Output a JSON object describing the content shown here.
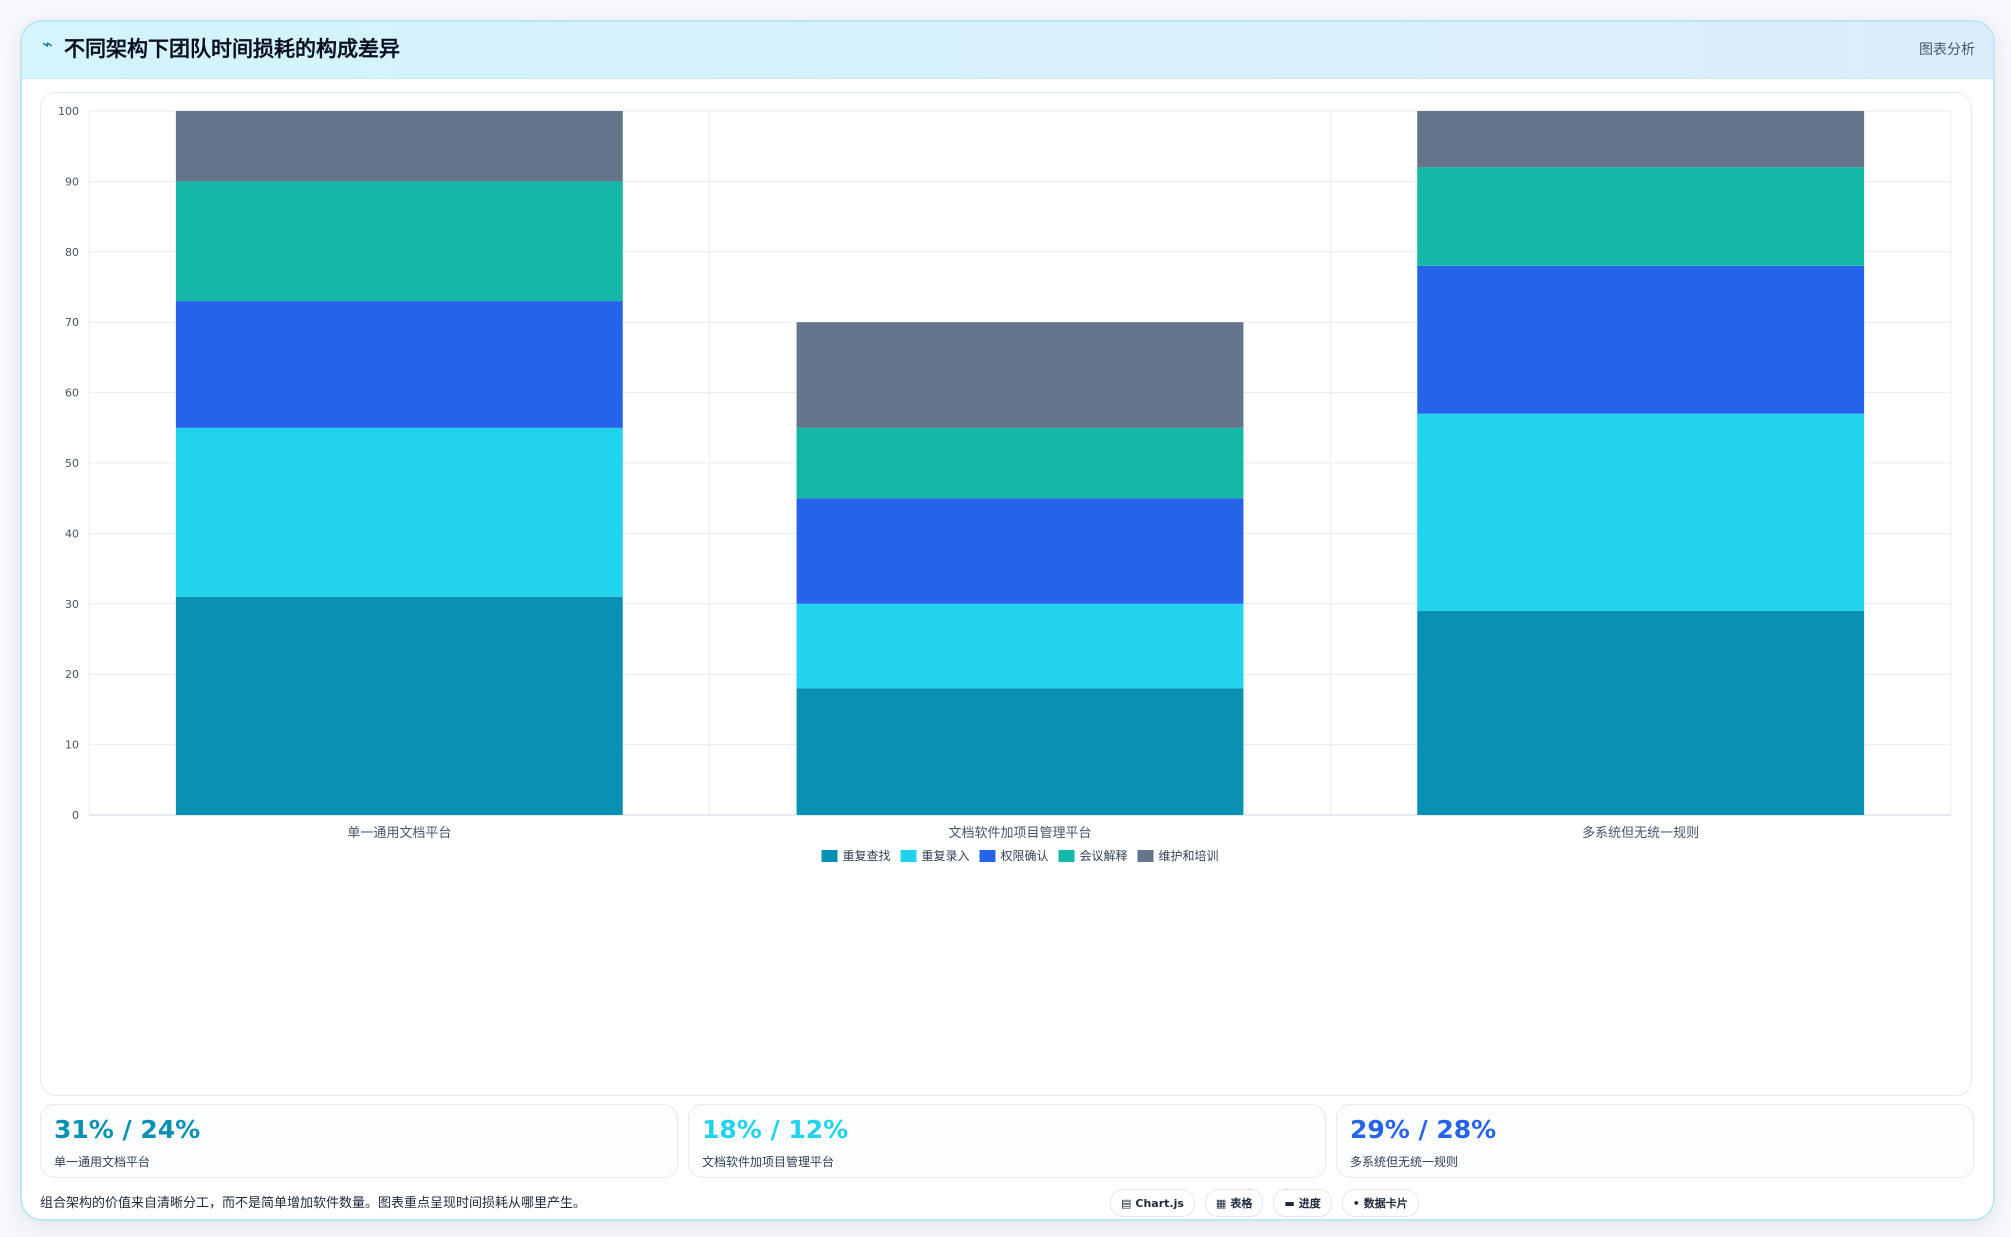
{
  "header": {
    "icon": "trend-line-icon",
    "title": "不同架构下团队时间损耗的构成差异",
    "action_label": "图表分析"
  },
  "chart_data": {
    "type": "bar",
    "stacked": true,
    "categories": [
      "单一通用文档平台",
      "文档软件加项目管理平台",
      "多系统但无统一规则"
    ],
    "series": [
      {
        "name": "重复查找",
        "color": "#0891b2",
        "values": [
          31,
          18,
          29
        ]
      },
      {
        "name": "重复录入",
        "color": "#22d3ee",
        "values": [
          24,
          12,
          28
        ]
      },
      {
        "name": "权限确认",
        "color": "#2563eb",
        "values": [
          18,
          15,
          21
        ]
      },
      {
        "name": "会议解释",
        "color": "#14b8a6",
        "values": [
          17,
          10,
          14
        ]
      },
      {
        "name": "维护和培训",
        "color": "#64748b",
        "values": [
          10,
          15,
          8
        ]
      }
    ],
    "ylim": [
      0,
      100
    ],
    "yticks": [
      "0",
      "10",
      "20",
      "30",
      "40",
      "50",
      "60",
      "70",
      "80",
      "90",
      "100"
    ],
    "grid": true,
    "legend": "bottom",
    "title": "",
    "xlabel": "",
    "ylabel": ""
  },
  "stats": [
    {
      "value": "31% / 24%",
      "label": "单一通用文档平台",
      "color": "#0891b2"
    },
    {
      "value": "18% / 12%",
      "label": "文档软件加项目管理平台",
      "color": "#22d3ee"
    },
    {
      "value": "29% / 28%",
      "label": "多系统但无统一规则",
      "color": "#2563eb"
    }
  ],
  "footer": {
    "note": "组合架构的价值来自清晰分工，而不是简单增加软件数量。图表重点呈现时间损耗从哪里产生。",
    "pills": [
      {
        "icon": "chart-icon",
        "glyph": "▤",
        "label": "Chart.js"
      },
      {
        "icon": "table-icon",
        "glyph": "▦",
        "label": "表格"
      },
      {
        "icon": "progress-icon",
        "glyph": "▬",
        "label": "进度"
      },
      {
        "icon": "card-icon",
        "glyph": "•",
        "label": "数据卡片"
      }
    ]
  }
}
